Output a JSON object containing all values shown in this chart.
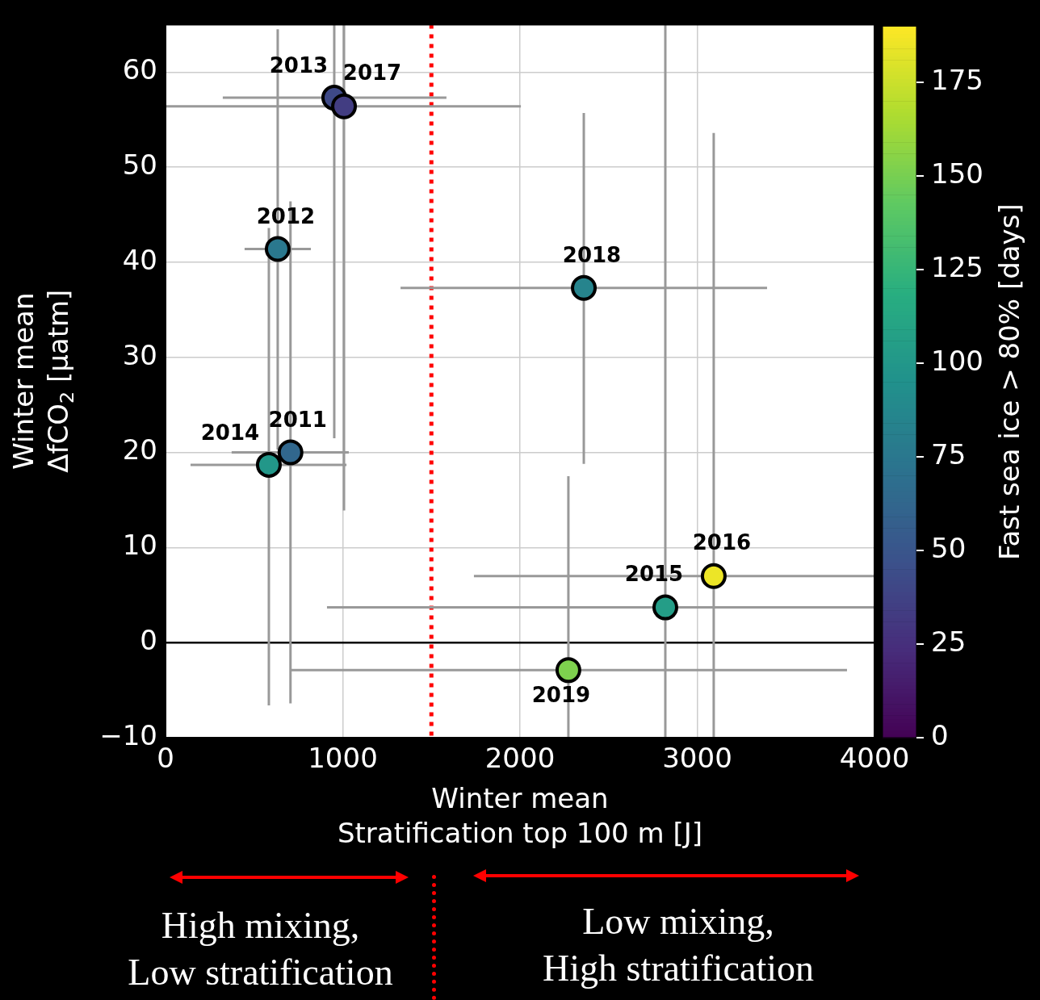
{
  "chart_data": {
    "type": "scatter",
    "xlabel": "Winter mean\nStratification top 100 m [J]",
    "ylabel": "Winter mean\nΔfCO$_{2}$ [μatm]",
    "clabel": "Fast sea ice > 80% [days]",
    "x": [
      705,
      633,
      952,
      583,
      2820,
      3093,
      1007,
      2360,
      2273
    ],
    "series": [
      {
        "values": [
          20.0,
          41.4,
          57.3,
          18.7,
          3.7,
          7.0,
          56.4,
          37.3,
          -2.9
        ],
        "cvalues": [
          63,
          76,
          42,
          100,
          105,
          185,
          34,
          85,
          152
        ],
        "errors": [
          [
            -6.4,
            46.4
          ],
          [
            20.3,
            64.5
          ],
          [
            21.5,
            65
          ],
          [
            -6.6,
            43.6
          ],
          [
            -10,
            65
          ],
          [
            -10,
            53.6
          ],
          [
            13.9,
            65
          ],
          [
            18.8,
            55.7
          ],
          [
            -10,
            17.5
          ]
        ],
        "xerrors": [
          [
            373,
            1034
          ],
          [
            446,
            820
          ],
          [
            323,
            1585
          ],
          [
            141,
            1021
          ],
          [
            911,
            4000
          ],
          [
            1740,
            4000
          ],
          [
            0,
            2005
          ],
          [
            1326,
            3394
          ],
          [
            706,
            3845
          ]
        ]
      }
    ],
    "marker": "circle",
    "xlim": [
      0,
      4000
    ],
    "xticks": [
      0,
      1000,
      2000,
      3000,
      4000
    ],
    "ylim": [
      -10,
      65
    ],
    "yticks": [
      {
        "value": -10,
        "label": "−10"
      },
      0,
      10,
      20,
      30,
      40,
      50,
      60
    ],
    "clim": [
      0,
      190
    ],
    "cticks": [
      0,
      25,
      50,
      75,
      100,
      125,
      150,
      175
    ],
    "grid": true,
    "ref_lines": [
      {
        "axis": "x",
        "value": 1500,
        "color": "#ff0000",
        "line_style": "dotted"
      },
      {
        "axis": "y",
        "value": 0,
        "color": "#000000",
        "line_style": "solid"
      }
    ],
    "annotations": [
      {
        "text": "2011",
        "x": 705,
        "y": 20.0
      },
      {
        "text": "2012",
        "x": 633,
        "y": 41.4
      },
      {
        "text": "2013",
        "x": 952,
        "y": 57.3
      },
      {
        "text": "2014",
        "x": 583,
        "y": 18.7
      },
      {
        "text": "2015",
        "x": 2820,
        "y": 3.7
      },
      {
        "text": "2016",
        "x": 3093,
        "y": 7.0
      },
      {
        "text": "2017",
        "x": 1007,
        "y": 56.4
      },
      {
        "text": "2018",
        "x": 2360,
        "y": 37.3
      },
      {
        "text": "2019",
        "x": 2273,
        "y": -2.9
      },
      "High mixing,\nLow stratification",
      "Low mixing,\nHigh stratification"
    ]
  }
}
